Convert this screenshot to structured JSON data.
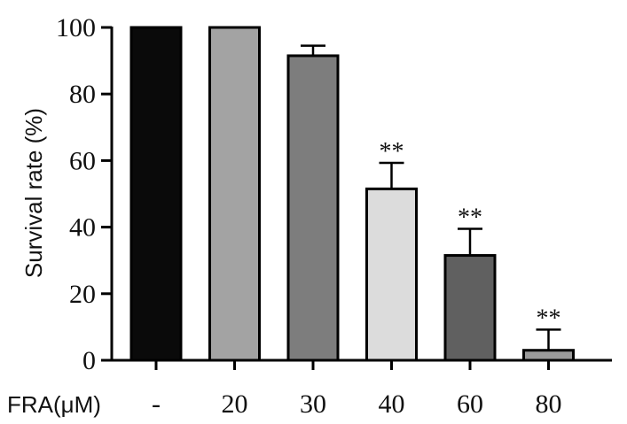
{
  "chart_data": {
    "type": "bar",
    "title": "",
    "xlabel": "",
    "x_prefix_label": "FRA(μM)",
    "ylabel": "Survival rate (%)",
    "ylim": [
      0,
      100
    ],
    "yticks": [
      0,
      20,
      40,
      60,
      80,
      100
    ],
    "categories": [
      "-",
      "20",
      "30",
      "40",
      "60",
      "80"
    ],
    "values": [
      100,
      100,
      91.5,
      51.5,
      31.5,
      3
    ],
    "errors": [
      0,
      0,
      3,
      7.8,
      8,
      6.2
    ],
    "significance": [
      "",
      "",
      "",
      "**",
      "**",
      "**"
    ],
    "bar_colors": [
      "#0a0a0a",
      "#a3a3a3",
      "#7d7d7d",
      "#dcdcdc",
      "#606060",
      "#9a9a9a"
    ],
    "edge_color": "#000000",
    "grid": false,
    "legend": "none"
  }
}
